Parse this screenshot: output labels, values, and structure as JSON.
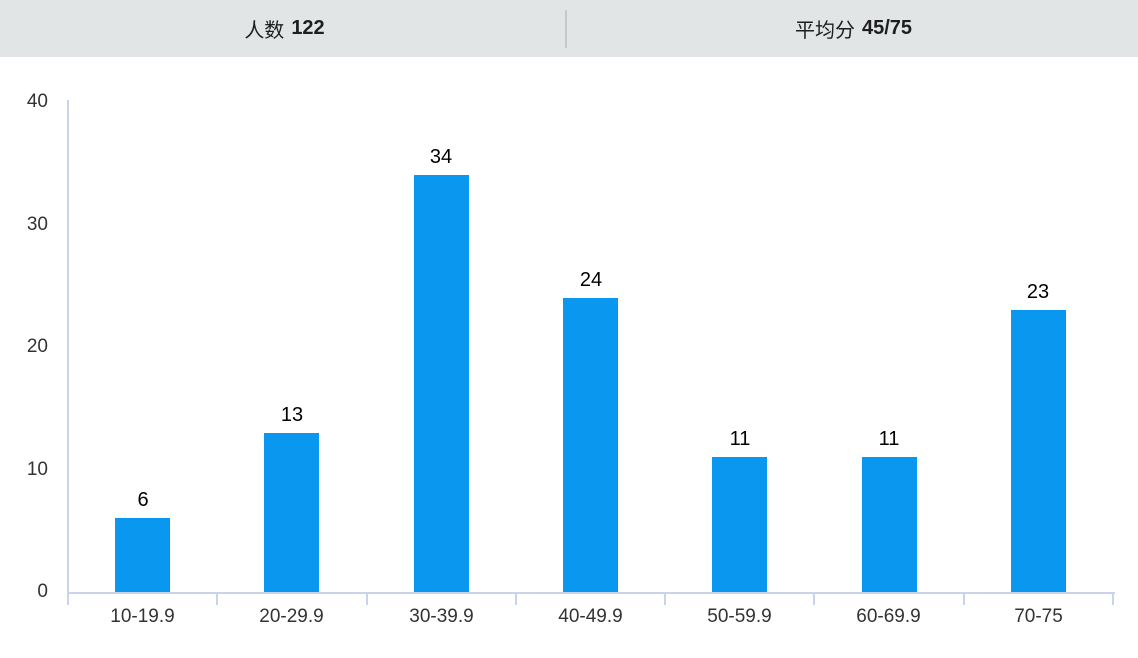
{
  "header": {
    "left_label": "人数",
    "left_value": "122",
    "right_label": "平均分",
    "right_value": "45/75"
  },
  "chart_data": {
    "type": "bar",
    "title": "",
    "categories": [
      "10-19.9",
      "20-29.9",
      "30-39.9",
      "40-49.9",
      "50-59.9",
      "60-69.9",
      "70-75"
    ],
    "values": [
      6,
      13,
      34,
      24,
      11,
      11,
      23
    ],
    "xlabel": "",
    "ylabel": "",
    "ylim": [
      0,
      40
    ],
    "yticks": [
      0,
      10,
      20,
      30,
      40
    ],
    "grid": false,
    "legend_position": "none",
    "value_labels_shown": true,
    "colors": {
      "bar": "#0a97f0",
      "axis": "#c8d4e8",
      "tick_label": "#333333",
      "value_label": "#000000",
      "header_background": "#e1e5e6",
      "header_divider": "#c6c8ca",
      "page_background": "#ffffff"
    }
  }
}
